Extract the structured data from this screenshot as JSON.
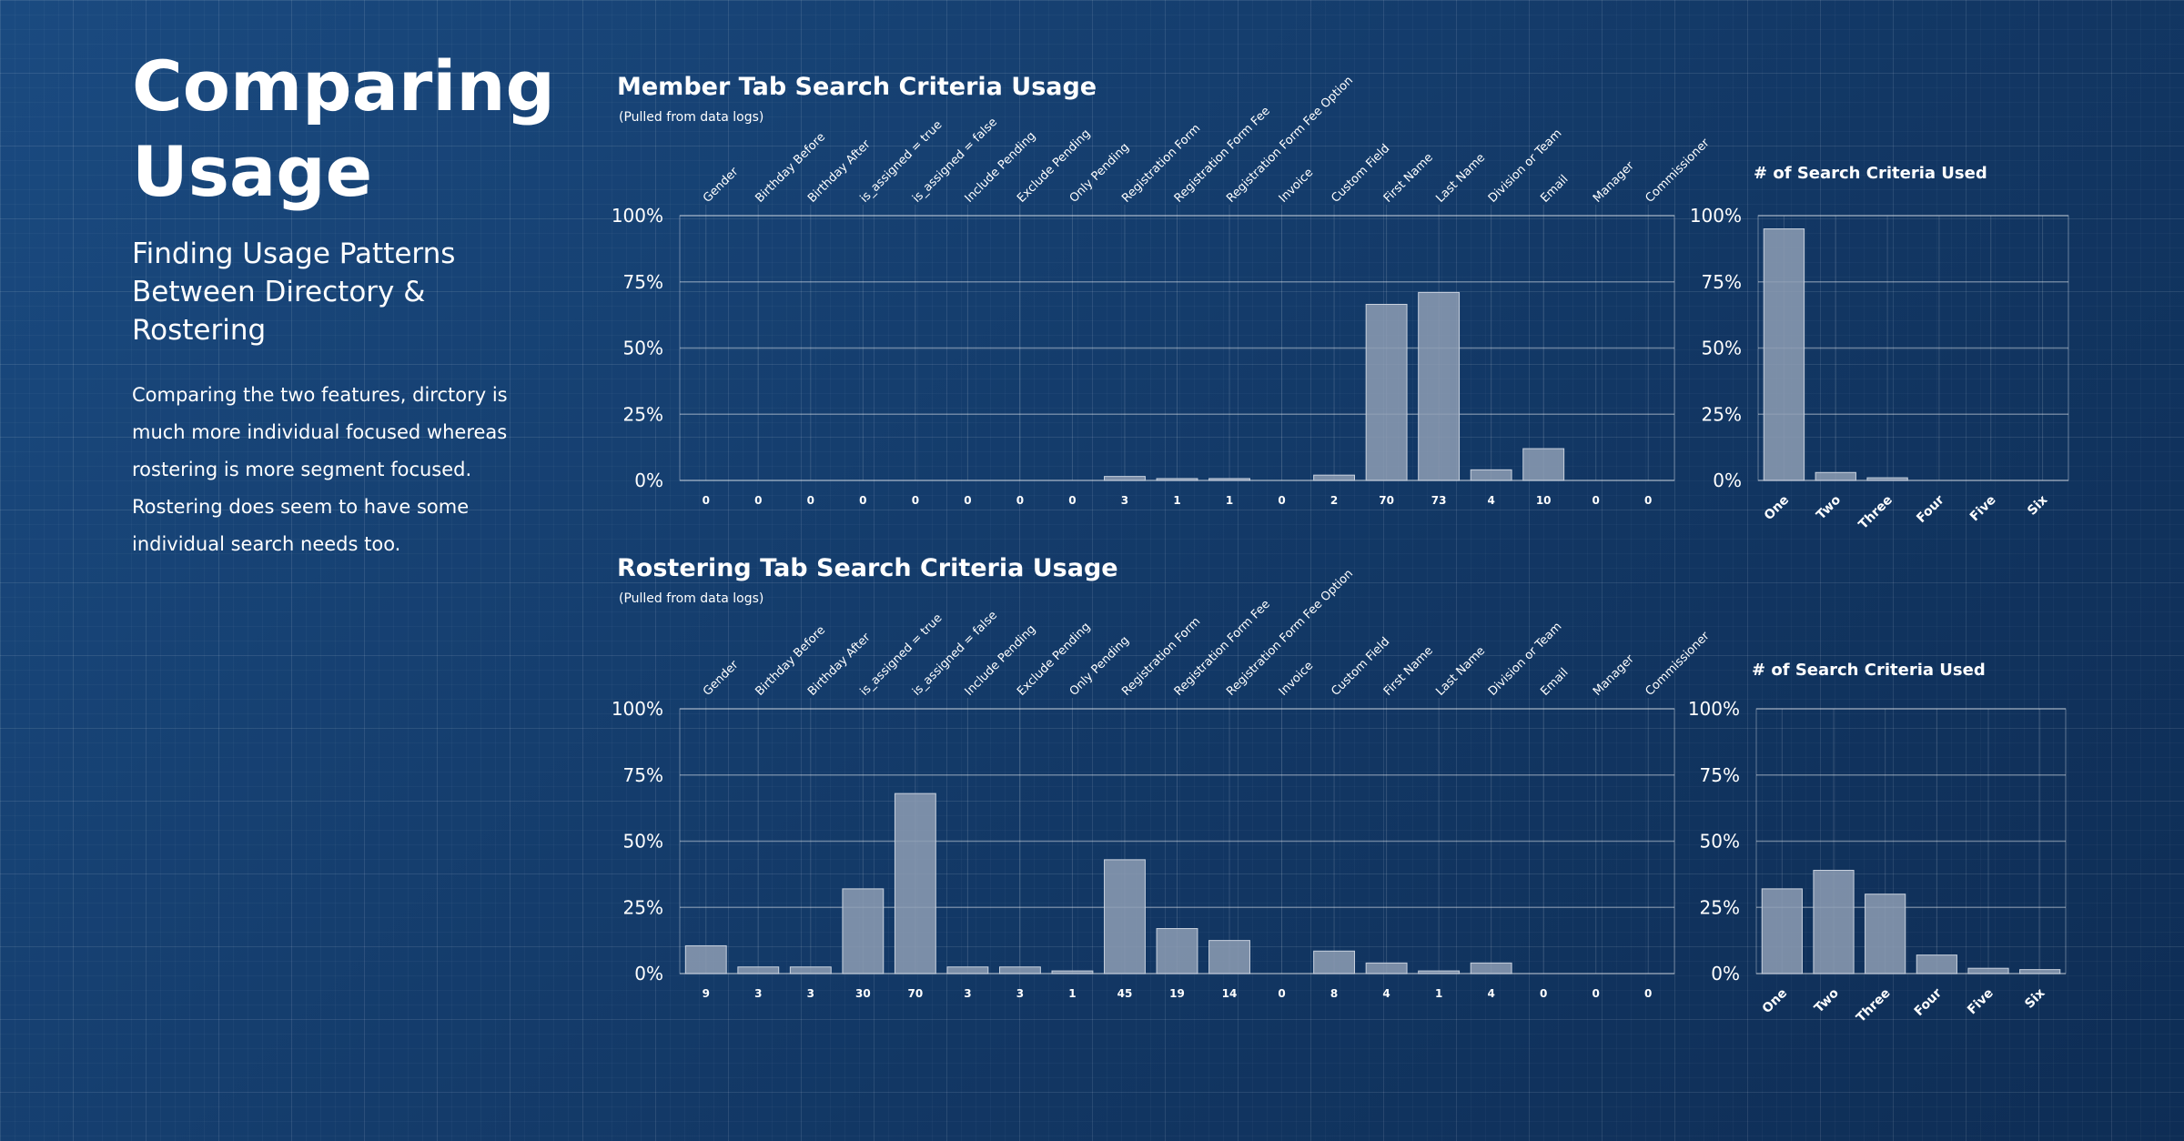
{
  "header": {
    "title": "Comparing Usage",
    "subtitle": "Finding Usage Patterns Between Directory & Rostering",
    "description": "Comparing the two features, dirctory is much more individual focused whereas rostering is more segment focused. Rostering does seem to have some individual search needs too."
  },
  "chart_data": [
    {
      "type": "bar",
      "title": "Member Tab Search Criteria Usage",
      "subtitle": "(Pulled from data logs)",
      "categories": [
        "Gender",
        "Birthday Before",
        "Birthday After",
        "is_assigned = true",
        "is_assigned = false",
        "Include Pending",
        "Exclude Pending",
        "Only Pending",
        "Registration Form",
        "Registration Form Fee",
        "Registration Form Fee Option",
        "Invoice",
        "Custom Field",
        "First Name",
        "Last Name",
        "Division or Team",
        "Email",
        "Manager",
        "Commissioner"
      ],
      "values": [
        0,
        0,
        0,
        0,
        0,
        0,
        0,
        0,
        1.5,
        0.7,
        0.7,
        0,
        2,
        66.5,
        71,
        4,
        12,
        0,
        0
      ],
      "counts": [
        0,
        0,
        0,
        0,
        0,
        0,
        0,
        0,
        3,
        1,
        1,
        0,
        2,
        70,
        73,
        4,
        10,
        0,
        0
      ],
      "color": "#8e9db4",
      "ylim": [
        0,
        100
      ],
      "yticks": [
        {
          "value": 0,
          "label": "0%"
        },
        {
          "value": 25,
          "label": "25%"
        },
        {
          "value": 50,
          "label": "50%"
        },
        {
          "value": 75,
          "label": "75%"
        },
        {
          "value": 100,
          "label": "100%"
        }
      ],
      "grid": true
    },
    {
      "type": "bar",
      "title": "# of Search Criteria Used",
      "categories": [
        "One",
        "Two",
        "Three",
        "Four",
        "Five",
        "Six"
      ],
      "values": [
        95,
        3,
        1,
        0,
        0,
        0
      ],
      "color": "#8e9db4",
      "ylim": [
        0,
        100
      ],
      "yticks": [
        {
          "value": 0,
          "label": "0%"
        },
        {
          "value": 25,
          "label": "25%"
        },
        {
          "value": 50,
          "label": "50%"
        },
        {
          "value": 75,
          "label": "75%"
        },
        {
          "value": 100,
          "label": "100%"
        }
      ],
      "grid": true
    },
    {
      "type": "bar",
      "title": "Rostering Tab Search Criteria Usage",
      "subtitle": "(Pulled from data logs)",
      "categories": [
        "Gender",
        "Birthday Before",
        "Birthday After",
        "is_assigned = true",
        "is_assigned = false",
        "Include Pending",
        "Exclude Pending",
        "Only Pending",
        "Registration Form",
        "Registration Form Fee",
        "Registration Form Fee Option",
        "Invoice",
        "Custom Field",
        "First Name",
        "Last Name",
        "Division or Team",
        "Email",
        "Manager",
        "Commissioner"
      ],
      "values": [
        10.5,
        2.5,
        2.5,
        32,
        68,
        2.5,
        2.5,
        1,
        43,
        17,
        12.5,
        0,
        8.5,
        4,
        1,
        4,
        0,
        0,
        0
      ],
      "counts": [
        9,
        3,
        3,
        30,
        70,
        3,
        3,
        1,
        45,
        19,
        14,
        0,
        8,
        4,
        1,
        4,
        0,
        0,
        0
      ],
      "color": "#8e9db4",
      "ylim": [
        0,
        100
      ],
      "yticks": [
        {
          "value": 0,
          "label": "0%"
        },
        {
          "value": 25,
          "label": "25%"
        },
        {
          "value": 50,
          "label": "50%"
        },
        {
          "value": 75,
          "label": "75%"
        },
        {
          "value": 100,
          "label": "100%"
        }
      ],
      "grid": true
    },
    {
      "type": "bar",
      "title": "# of Search Criteria Used",
      "categories": [
        "One",
        "Two",
        "Three",
        "Four",
        "Five",
        "Six"
      ],
      "values": [
        32,
        39,
        30,
        7,
        2,
        1.5
      ],
      "color": "#8e9db4",
      "ylim": [
        0,
        100
      ],
      "yticks": [
        {
          "value": 0,
          "label": "0%"
        },
        {
          "value": 25,
          "label": "25%"
        },
        {
          "value": 50,
          "label": "50%"
        },
        {
          "value": 75,
          "label": "75%"
        },
        {
          "value": 100,
          "label": "100%"
        }
      ],
      "grid": true
    }
  ]
}
